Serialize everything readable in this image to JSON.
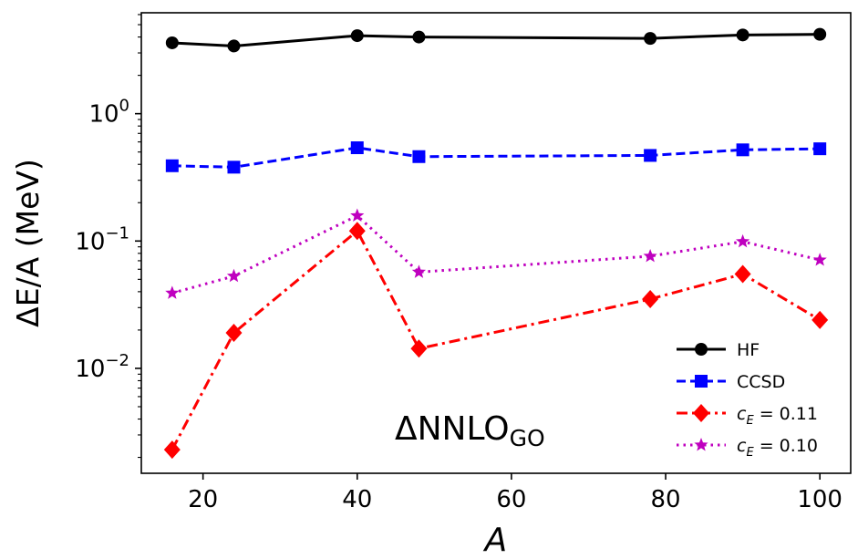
{
  "chart_data": {
    "type": "line",
    "xlabel": "A",
    "ylabel": "ΔE/A (MeV)",
    "x_scale": "linear",
    "y_scale": "log",
    "xlim": [
      12,
      104
    ],
    "ylim": [
      0.0015,
      6.2
    ],
    "x_ticks": [
      20,
      40,
      60,
      80,
      100
    ],
    "y_ticks": [
      {
        "value": 0.01,
        "base": "10",
        "exp": "−2"
      },
      {
        "value": 0.1,
        "base": "10",
        "exp": "−1"
      },
      {
        "value": 1,
        "base": "10",
        "exp": "0"
      }
    ],
    "grid": false,
    "legend_position": "lower-right",
    "annotation": {
      "main": "ΔNNLO",
      "sub": "GO"
    },
    "x": [
      16,
      24,
      40,
      48,
      78,
      90,
      100
    ],
    "series": [
      {
        "name": "HF",
        "color": "#000000",
        "marker": "circle",
        "linestyle": "solid",
        "values": [
          3.6,
          3.4,
          4.1,
          4.0,
          3.9,
          4.15,
          4.2
        ]
      },
      {
        "name": "CCSD",
        "color": "#0000ff",
        "marker": "square",
        "linestyle": "dashed",
        "values": [
          0.39,
          0.38,
          0.54,
          0.46,
          0.47,
          0.52,
          0.53
        ]
      },
      {
        "name": "c_E = 0.11",
        "label_main": "c",
        "label_sub": "E",
        "label_rest": " = 0.11",
        "color": "#ff0000",
        "marker": "diamond",
        "linestyle": "dashdot",
        "values": [
          0.0023,
          0.019,
          0.12,
          0.0143,
          0.035,
          0.055,
          0.024
        ]
      },
      {
        "name": "c_E = 0.10",
        "label_main": "c",
        "label_sub": "E",
        "label_rest": " = 0.10",
        "color": "#bf00bf",
        "marker": "star",
        "linestyle": "dotted",
        "values": [
          0.039,
          0.053,
          0.158,
          0.057,
          0.076,
          0.099,
          0.071
        ]
      }
    ]
  }
}
